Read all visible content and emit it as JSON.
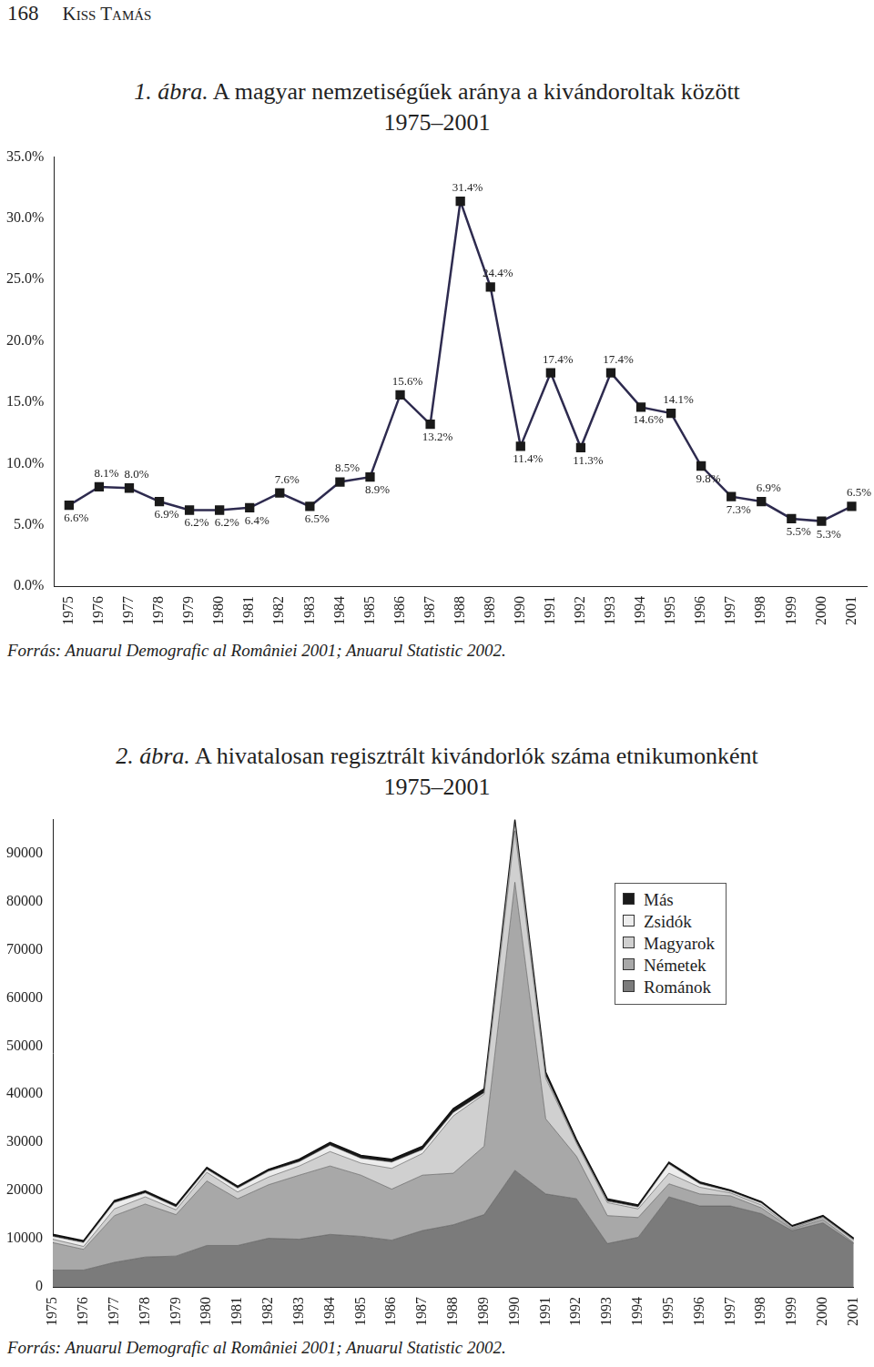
{
  "page_header": {
    "page_number": "168",
    "author": "Kiss Tamás"
  },
  "chart_data": [
    {
      "type": "line",
      "figure_label": "1. ábra.",
      "title": "A magyar nemzetiségűek aránya a kivándoroltak között",
      "subtitle": "1975–2001",
      "source": "Forrás: Anuarul Demografic al României 2001; Anuarul Statistic 2002.",
      "categories": [
        "1975",
        "1976",
        "1977",
        "1978",
        "1979",
        "1980",
        "1981",
        "1982",
        "1983",
        "1984",
        "1985",
        "1986",
        "1987",
        "1988",
        "1989",
        "1990",
        "1991",
        "1992",
        "1993",
        "1994",
        "1995",
        "1996",
        "1997",
        "1998",
        "1999",
        "2000",
        "2001"
      ],
      "values": [
        6.6,
        8.1,
        8.0,
        6.9,
        6.2,
        6.2,
        6.4,
        7.6,
        6.5,
        8.5,
        8.9,
        15.6,
        13.2,
        31.4,
        24.4,
        11.4,
        17.4,
        11.3,
        17.4,
        14.6,
        14.1,
        9.8,
        7.3,
        6.9,
        5.5,
        5.3,
        6.5
      ],
      "value_labels": [
        "6.6%",
        "8.1%",
        "8.0%",
        "6.9%",
        "6.2%",
        "6.2%",
        "6.4%",
        "7.6%",
        "6.5%",
        "8.5%",
        "8.9%",
        "15.6%",
        "13.2%",
        "31.4%",
        "24.4%",
        "11.4%",
        "17.4%",
        "11.3%",
        "17.4%",
        "14.6%",
        "14.1%",
        "9.8%",
        "7.3%",
        "6.9%",
        "5.5%",
        "5.3%",
        "6.5%"
      ],
      "color": "#2e2b4f",
      "marker": "square",
      "line_style": "solid",
      "data_labels": true,
      "grid": false,
      "ylim": [
        0,
        35
      ],
      "yticks": [
        {
          "value": 0,
          "label": "0.0%"
        },
        {
          "value": 5,
          "label": "5.0%"
        },
        {
          "value": 10,
          "label": "10.0%"
        },
        {
          "value": 15,
          "label": "15.0%"
        },
        {
          "value": 20,
          "label": "20.0%"
        },
        {
          "value": 25,
          "label": "25.0%"
        },
        {
          "value": 30,
          "label": "30.0%"
        },
        {
          "value": 35,
          "label": "35.0%"
        }
      ]
    },
    {
      "type": "area",
      "figure_label": "2. ábra.",
      "title": "A hivatalosan regisztrált kivándorlók száma etnikumonként",
      "subtitle": "1975–2001",
      "source": "Forrás: Anuarul Demografic al României 2001; Anuarul Statistic 2002.",
      "stacked": true,
      "grid": false,
      "legend": "upper right",
      "categories": [
        "1975",
        "1976",
        "1977",
        "1978",
        "1979",
        "1980",
        "1981",
        "1982",
        "1983",
        "1984",
        "1985",
        "1986",
        "1987",
        "1988",
        "1989",
        "1990",
        "1991",
        "1992",
        "1993",
        "1994",
        "1995",
        "1996",
        "1997",
        "1998",
        "1999",
        "2000",
        "2001"
      ],
      "series": [
        {
          "name": "Románok",
          "color": "#7b7b7b",
          "values": [
            3500,
            3500,
            5100,
            6200,
            6400,
            8600,
            8600,
            10100,
            9900,
            10900,
            10500,
            9700,
            11700,
            12900,
            15000,
            24200,
            19300,
            18300,
            9000,
            10300,
            18700,
            16800,
            16800,
            15200,
            11700,
            13300,
            9000
          ]
        },
        {
          "name": "Németek",
          "color": "#a8a8a8",
          "values": [
            5700,
            4300,
            9700,
            11000,
            8600,
            13400,
            9700,
            11100,
            13300,
            14200,
            12700,
            10600,
            11500,
            10700,
            14200,
            59800,
            15600,
            8800,
            5800,
            4100,
            2700,
            2500,
            2100,
            1200,
            300,
            700,
            200
          ]
        },
        {
          "name": "Magyarok",
          "color": "#d0d0d0",
          "values": [
            700,
            600,
            1400,
            1500,
            1000,
            1800,
            1400,
            1600,
            1900,
            3000,
            2500,
            4300,
            4500,
            11900,
            10800,
            10700,
            8400,
            2700,
            2700,
            1800,
            2200,
            1400,
            600,
            600,
            200,
            400,
            500
          ]
        },
        {
          "name": "Zsidók",
          "color": "#ededed",
          "values": [
            600,
            800,
            1300,
            800,
            600,
            600,
            800,
            1200,
            900,
            1300,
            1000,
            1300,
            800,
            700,
            300,
            1500,
            500,
            200,
            300,
            400,
            1900,
            700,
            300,
            400,
            200,
            100,
            100
          ]
        },
        {
          "name": "Más",
          "color": "#1a1a1a",
          "values": [
            400,
            400,
            400,
            400,
            400,
            400,
            400,
            400,
            500,
            600,
            600,
            600,
            700,
            800,
            800,
            700,
            800,
            600,
            500,
            400,
            400,
            400,
            300,
            300,
            300,
            300,
            300
          ]
        }
      ],
      "ylim": [
        0,
        97000
      ],
      "yticks": [
        0,
        10000,
        20000,
        30000,
        40000,
        50000,
        60000,
        70000,
        80000,
        90000
      ]
    }
  ]
}
